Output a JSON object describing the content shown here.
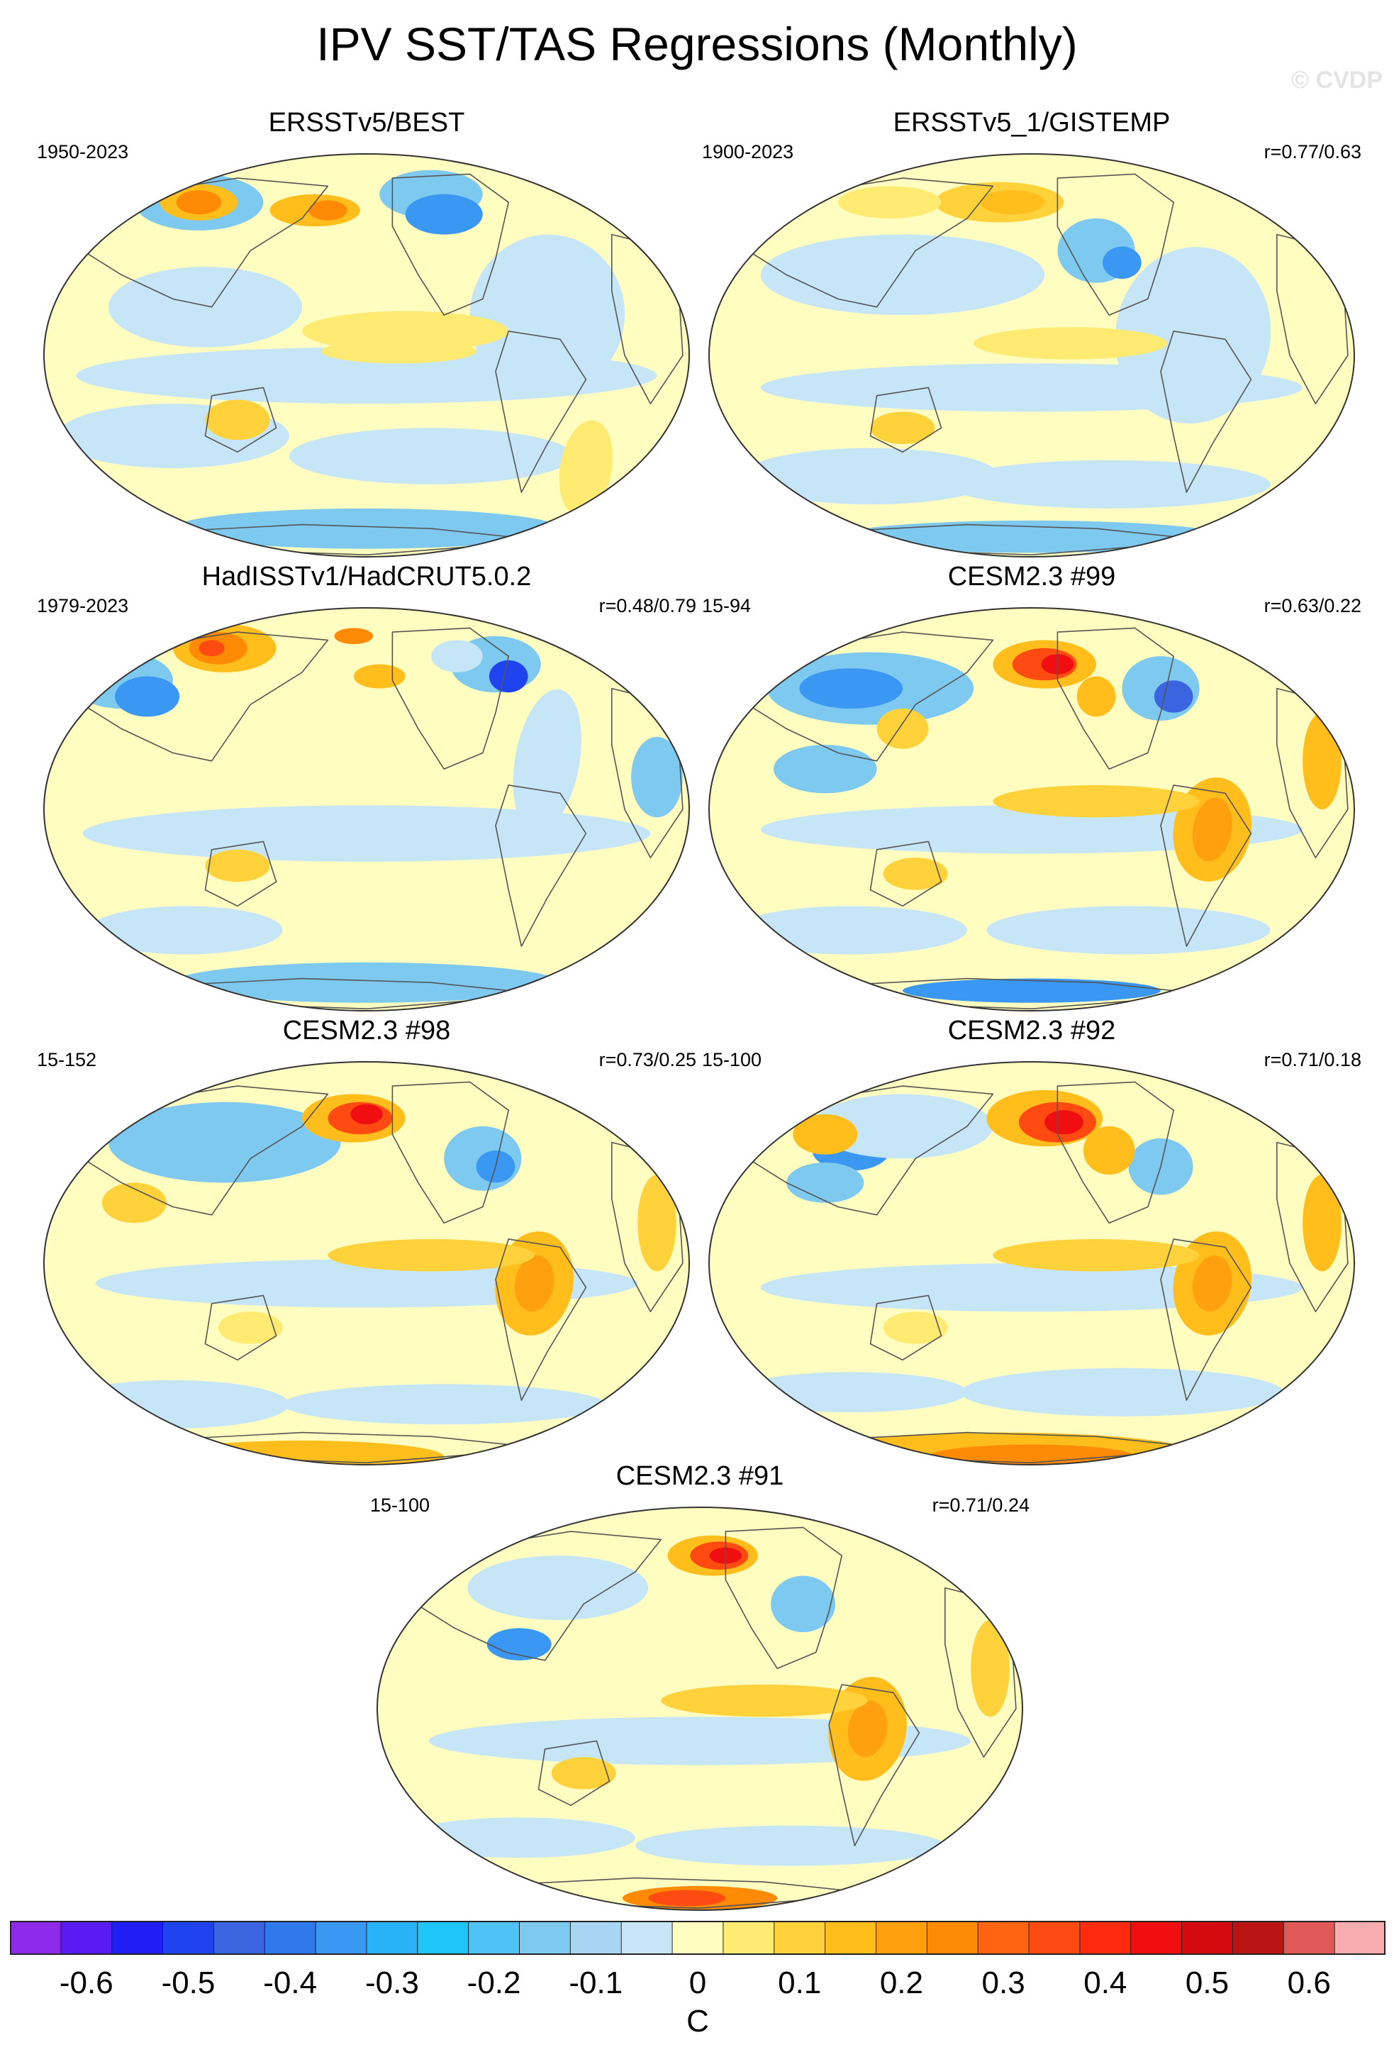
{
  "title": "IPV SST/TAS Regressions (Monthly)",
  "watermark": "© CVDP",
  "colors": {
    "land_outline": "#555555",
    "map_border": "#333333",
    "missing": "#ffffff"
  },
  "panels": [
    {
      "title": "ERSSTv5/BEST",
      "period": "1950-2023",
      "corr": "",
      "pattern": "obs_best"
    },
    {
      "title": "ERSSTv5_1/GISTEMP",
      "period": "1900-2023",
      "corr": "r=0.77/0.63",
      "pattern": "obs_gistemp"
    },
    {
      "title": "HadISSTv1/HadCRUT5.0.2",
      "period": "1979-2023",
      "corr": "r=0.48/0.79",
      "pattern": "obs_hadcrut"
    },
    {
      "title": "CESM2.3 #99",
      "period": "15-94",
      "corr": "r=0.63/0.22",
      "pattern": "model_99"
    },
    {
      "title": "CESM2.3 #98",
      "period": "15-152",
      "corr": "r=0.73/0.25",
      "pattern": "model_98"
    },
    {
      "title": "CESM2.3 #92",
      "period": "15-100",
      "corr": "r=0.71/0.18",
      "pattern": "model_92"
    },
    {
      "title": "CESM2.3 #91",
      "period": "15-100",
      "corr": "r=0.71/0.24",
      "pattern": "model_91"
    }
  ],
  "colorbar": {
    "unit": "C",
    "tick_labels": [
      "-0.6",
      "-0.5",
      "-0.4",
      "-0.3",
      "-0.2",
      "-0.1",
      "0",
      "0.1",
      "0.2",
      "0.3",
      "0.4",
      "0.5",
      "0.6"
    ],
    "colors": [
      "#8e2bea",
      "#5a1bf2",
      "#1f1ff5",
      "#1f44ef",
      "#3a64e0",
      "#2f79ec",
      "#3a97f2",
      "#2ab2f7",
      "#20c6f9",
      "#4fc3f7",
      "#7ec9f0",
      "#a8d6f2",
      "#c6e6f7",
      "#fffdc0",
      "#ffeb72",
      "#ffd23c",
      "#ffbe1c",
      "#ffa00e",
      "#ff8a06",
      "#ff6410",
      "#ff4a12",
      "#ff2a10",
      "#f00e10",
      "#d40a0e",
      "#bb1414",
      "#e05858",
      "#f7adad"
    ]
  }
}
